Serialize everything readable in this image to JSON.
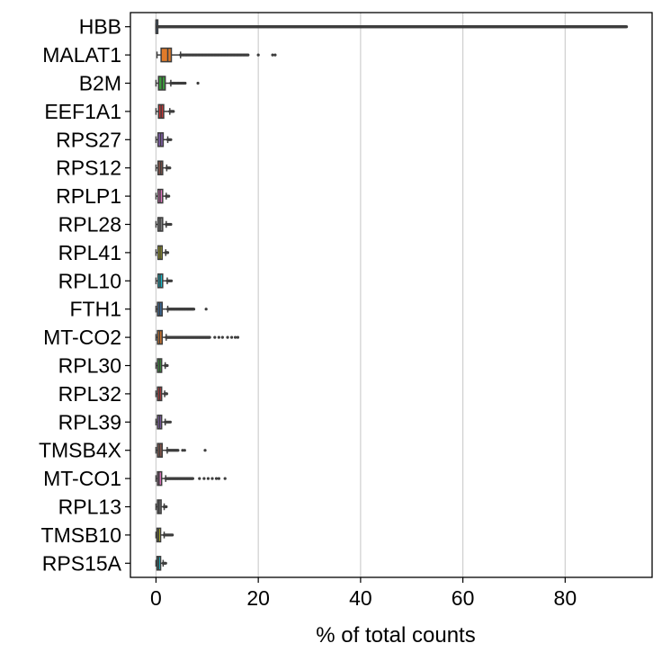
{
  "chart_data": {
    "type": "box",
    "orientation": "horizontal",
    "title": "",
    "xlabel": "% of total counts",
    "ylabel": "",
    "xlim": [
      -5,
      97
    ],
    "xticks": [
      0,
      20,
      40,
      60,
      80
    ],
    "grid": "vertical",
    "colors": {
      "HBB": "#3a6ea5",
      "MALAT1": "#e07b2a",
      "B2M": "#3a9a3a",
      "EEF1A1": "#c83737",
      "RPS27": "#8a63b8",
      "RPS12": "#8c564b",
      "RPLP1": "#e377c2",
      "RPL28": "#7f7f7f",
      "RPL41": "#bcbd22",
      "RPL10": "#17becf",
      "FTH1": "#3a6ea5",
      "MT-CO2": "#e07b2a",
      "RPL30": "#3a9a3a",
      "RPL32": "#c83737",
      "RPL39": "#8a63b8",
      "TMSB4X": "#8c564b",
      "MT-CO1": "#e377c2",
      "RPL13": "#7f7f7f",
      "TMSB10": "#bcbd22",
      "RPS15A": "#17becf",
      "edge": "#3d3d3d",
      "grid": "#cfcfcf"
    },
    "categories": [
      "HBB",
      "MALAT1",
      "B2M",
      "EEF1A1",
      "RPS27",
      "RPS12",
      "RPLP1",
      "RPL28",
      "RPL41",
      "RPL10",
      "FTH1",
      "MT-CO2",
      "RPL30",
      "RPL32",
      "RPL39",
      "TMSB4X",
      "MT-CO1",
      "RPL13",
      "TMSB10",
      "RPS15A"
    ],
    "boxes": [
      {
        "name": "HBB",
        "min": 0,
        "q1": 0,
        "median": 0.02,
        "q3": 0.08,
        "max": 0.2,
        "outliers": [
          [
            0.3,
            92.0,
            950
          ]
        ]
      },
      {
        "name": "MALAT1",
        "min": 0.2,
        "q1": 1.0,
        "median": 2.3,
        "q3": 3.0,
        "max": 4.8,
        "outliers": [
          [
            4.8,
            18.0,
            55
          ],
          [
            20.0
          ],
          [
            22.8
          ],
          [
            23.3
          ]
        ]
      },
      {
        "name": "B2M",
        "min": 0,
        "q1": 0.5,
        "median": 1.2,
        "q3": 1.8,
        "max": 2.9,
        "outliers": [
          [
            2.9,
            5.7,
            14
          ],
          [
            8.2
          ]
        ]
      },
      {
        "name": "EEF1A1",
        "min": 0,
        "q1": 0.5,
        "median": 1.0,
        "q3": 1.5,
        "max": 2.7,
        "outliers": [
          [
            2.7,
            3.4,
            5
          ]
        ]
      },
      {
        "name": "RPS27",
        "min": 0,
        "q1": 0.4,
        "median": 0.9,
        "q3": 1.4,
        "max": 2.3,
        "outliers": [
          [
            2.3,
            2.9,
            4
          ]
        ]
      },
      {
        "name": "RPS12",
        "min": 0,
        "q1": 0.4,
        "median": 0.9,
        "q3": 1.3,
        "max": 2.1,
        "outliers": [
          [
            2.1,
            2.7,
            4
          ]
        ]
      },
      {
        "name": "RPLP1",
        "min": 0,
        "q1": 0.4,
        "median": 0.8,
        "q3": 1.3,
        "max": 2.0,
        "outliers": [
          [
            2.0,
            2.5,
            4
          ]
        ]
      },
      {
        "name": "RPL28",
        "min": 0,
        "q1": 0.4,
        "median": 0.8,
        "q3": 1.3,
        "max": 2.0,
        "outliers": [
          [
            2.0,
            2.9,
            5
          ]
        ]
      },
      {
        "name": "RPL41",
        "min": 0,
        "q1": 0.4,
        "median": 0.8,
        "q3": 1.2,
        "max": 1.9,
        "outliers": [
          [
            1.9,
            2.3,
            4
          ]
        ]
      },
      {
        "name": "RPL10",
        "min": 0,
        "q1": 0.4,
        "median": 0.8,
        "q3": 1.3,
        "max": 2.2,
        "outliers": [
          [
            2.2,
            3.0,
            5
          ]
        ]
      },
      {
        "name": "FTH1",
        "min": 0,
        "q1": 0.3,
        "median": 0.7,
        "q3": 1.2,
        "max": 2.3,
        "outliers": [
          [
            2.3,
            7.4,
            40
          ],
          [
            9.8
          ]
        ]
      },
      {
        "name": "MT-CO2",
        "min": 0,
        "q1": 0.3,
        "median": 0.7,
        "q3": 1.2,
        "max": 2.0,
        "outliers": [
          [
            2.0,
            10.5,
            70
          ],
          [
            11.5
          ],
          [
            12.3
          ],
          [
            13.0
          ],
          [
            14.0
          ],
          [
            14.8
          ],
          [
            15.5
          ],
          [
            16.0
          ]
        ]
      },
      {
        "name": "RPL30",
        "min": 0,
        "q1": 0.3,
        "median": 0.7,
        "q3": 1.1,
        "max": 1.8,
        "outliers": [
          [
            1.8,
            2.2,
            4
          ]
        ]
      },
      {
        "name": "RPL32",
        "min": 0,
        "q1": 0.3,
        "median": 0.7,
        "q3": 1.1,
        "max": 1.7,
        "outliers": [
          [
            1.7,
            2.1,
            4
          ]
        ]
      },
      {
        "name": "RPL39",
        "min": 0,
        "q1": 0.3,
        "median": 0.7,
        "q3": 1.1,
        "max": 1.8,
        "outliers": [
          [
            1.8,
            2.8,
            5
          ]
        ]
      },
      {
        "name": "TMSB4X",
        "min": 0,
        "q1": 0.3,
        "median": 0.7,
        "q3": 1.2,
        "max": 2.2,
        "outliers": [
          [
            2.2,
            4.3,
            12
          ],
          [
            5.2
          ],
          [
            5.6
          ],
          [
            9.6
          ]
        ]
      },
      {
        "name": "MT-CO1",
        "min": 0,
        "q1": 0.3,
        "median": 0.6,
        "q3": 1.1,
        "max": 1.9,
        "outliers": [
          [
            1.9,
            7.2,
            45
          ],
          [
            8.5
          ],
          [
            9.4
          ],
          [
            10.2
          ],
          [
            11.0
          ],
          [
            11.8
          ],
          [
            12.3
          ],
          [
            13.5
          ]
        ]
      },
      {
        "name": "RPL13",
        "min": 0,
        "q1": 0.3,
        "median": 0.6,
        "q3": 1.0,
        "max": 1.6,
        "outliers": [
          [
            1.6,
            2.0,
            4
          ]
        ]
      },
      {
        "name": "TMSB10",
        "min": 0,
        "q1": 0.2,
        "median": 0.5,
        "q3": 0.9,
        "max": 1.6,
        "outliers": [
          [
            1.6,
            3.2,
            8
          ]
        ]
      },
      {
        "name": "RPS15A",
        "min": 0,
        "q1": 0.2,
        "median": 0.5,
        "q3": 0.9,
        "max": 1.4,
        "outliers": [
          [
            1.4,
            1.9,
            4
          ]
        ]
      }
    ]
  }
}
